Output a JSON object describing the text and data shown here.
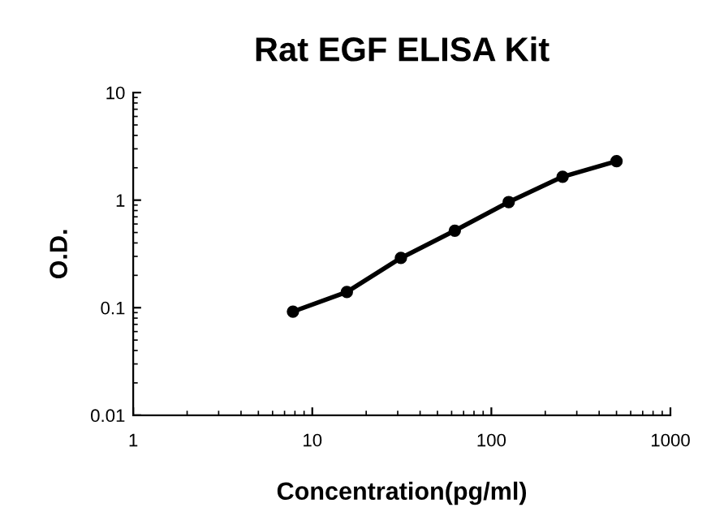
{
  "chart_data": {
    "type": "line",
    "title": "Rat EGF ELISA Kit",
    "xlabel": "Concentration(pg/ml)",
    "ylabel": "O.D.",
    "series": [
      {
        "color": "#000000",
        "x": [
          7.8,
          15.6,
          31.25,
          62.5,
          125,
          250,
          500
        ],
        "values": [
          0.092,
          0.14,
          0.29,
          0.52,
          0.96,
          1.65,
          2.3
        ]
      }
    ],
    "log": "xy",
    "xlim": [
      1,
      1000
    ],
    "xticks": [
      1,
      10,
      100,
      1000
    ],
    "ylim": [
      0.01,
      10
    ],
    "yticks": [
      0.01,
      0.1,
      1,
      10
    ],
    "marker": "circle",
    "line_style": "solid",
    "grid": false,
    "legend": false
  }
}
